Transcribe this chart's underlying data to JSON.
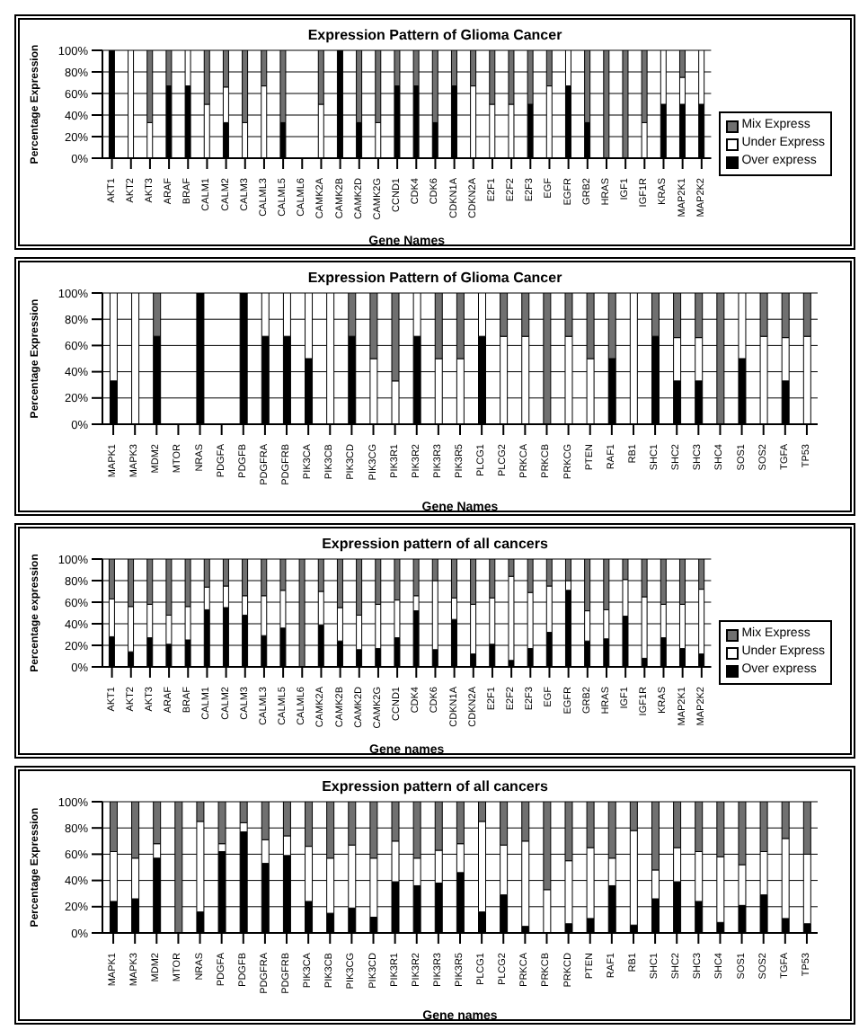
{
  "chart_data": [
    {
      "type": "bar",
      "title": "Expression Pattern of Glioma Cancer",
      "xlabel": "Gene Names",
      "ylabel": "Percentage Expression",
      "stacked": true,
      "grid": "y",
      "legend": "right",
      "ylim": [
        0,
        100
      ],
      "yticks": [
        {
          "value": 0,
          "label": "0%"
        },
        {
          "value": 20,
          "label": "20%"
        },
        {
          "value": 40,
          "label": "40%"
        },
        {
          "value": 60,
          "label": "60%"
        },
        {
          "value": 80,
          "label": "80%"
        },
        {
          "value": 100,
          "label": "100%"
        }
      ],
      "categories": [
        "AKT1",
        "AKT2",
        "AKT3",
        "ARAF",
        "BRAF",
        "CALM1",
        "CALM2",
        "CALM3",
        "CALML3",
        "CALML5",
        "CALML6",
        "CAMK2A",
        "CAMK2B",
        "CAMK2D",
        "CAMK2G",
        "CCND1",
        "CDK4",
        "CDK6",
        "CDKN1A",
        "CDKN2A",
        "E2F1",
        "E2F2",
        "E2F3",
        "EGF",
        "EGFR",
        "GRB2",
        "HRAS",
        "IGF1",
        "IGF1R",
        "KRAS",
        "MAP2K1",
        "MAP2K2"
      ],
      "series": [
        {
          "name": "Over express",
          "color": "#000000",
          "values": [
            100,
            0,
            0,
            67,
            67,
            0,
            33,
            0,
            0,
            33,
            0,
            0,
            100,
            33,
            0,
            67,
            67,
            33,
            67,
            0,
            0,
            0,
            50,
            0,
            67,
            33,
            0,
            0,
            0,
            50,
            50,
            50
          ]
        },
        {
          "name": "Under Express",
          "color": "#ffffff",
          "values": [
            0,
            100,
            33,
            0,
            33,
            50,
            33,
            33,
            67,
            0,
            0,
            50,
            0,
            0,
            33,
            0,
            0,
            0,
            0,
            67,
            50,
            50,
            0,
            67,
            33,
            0,
            0,
            0,
            33,
            50,
            25,
            50
          ]
        },
        {
          "name": "Mix Express",
          "color": "#707070",
          "values": [
            0,
            0,
            67,
            33,
            0,
            50,
            34,
            67,
            33,
            67,
            0,
            50,
            0,
            67,
            67,
            33,
            33,
            67,
            33,
            33,
            50,
            50,
            50,
            33,
            0,
            67,
            100,
            100,
            67,
            0,
            25,
            0
          ]
        }
      ]
    },
    {
      "type": "bar",
      "title": "Expression Pattern of Glioma Cancer",
      "xlabel": "Gene Names",
      "ylabel": "Percentage Expression",
      "stacked": true,
      "grid": "y",
      "ylim": [
        0,
        100
      ],
      "yticks": [
        {
          "value": 0,
          "label": "0%"
        },
        {
          "value": 20,
          "label": "20%"
        },
        {
          "value": 40,
          "label": "40%"
        },
        {
          "value": 60,
          "label": "60%"
        },
        {
          "value": 80,
          "label": "80%"
        },
        {
          "value": 100,
          "label": "100%"
        }
      ],
      "categories": [
        "MAPK1",
        "MAPK3",
        "MDM2",
        "MTOR",
        "NRAS",
        "PDGFA",
        "PDGFB",
        "PDGFRA",
        "PDGFRB",
        "PIK3CA",
        "PIK3CB",
        "PIK3CD",
        "PIK3CG",
        "PIK3R1",
        "PIK3R2",
        "PIK3R3",
        "PIK3R5",
        "PLCG1",
        "PLCG2",
        "PRKCA",
        "PRKCB",
        "PRKCG",
        "PTEN",
        "RAF1",
        "RB1",
        "SHC1",
        "SHC2",
        "SHC3",
        "SHC4",
        "SOS1",
        "SOS2",
        "TGFA",
        "TP53"
      ],
      "series": [
        {
          "color": "#000000",
          "values": [
            33,
            0,
            67,
            0,
            100,
            0,
            100,
            67,
            67,
            50,
            0,
            67,
            0,
            0,
            67,
            0,
            0,
            67,
            0,
            0,
            0,
            0,
            0,
            50,
            0,
            67,
            33,
            33,
            0,
            50,
            0,
            33,
            0
          ]
        },
        {
          "color": "#ffffff",
          "values": [
            67,
            100,
            0,
            0,
            0,
            0,
            0,
            33,
            33,
            50,
            100,
            0,
            50,
            33,
            33,
            50,
            50,
            33,
            67,
            67,
            0,
            67,
            50,
            0,
            100,
            0,
            33,
            33,
            0,
            50,
            67,
            33,
            67
          ]
        },
        {
          "color": "#707070",
          "values": [
            0,
            0,
            33,
            0,
            0,
            0,
            0,
            0,
            0,
            0,
            0,
            33,
            50,
            67,
            0,
            50,
            50,
            0,
            33,
            33,
            100,
            33,
            50,
            50,
            0,
            33,
            34,
            34,
            100,
            0,
            33,
            34,
            33
          ]
        }
      ]
    },
    {
      "type": "bar",
      "title": "Expression pattern of all cancers",
      "xlabel": "Gene names",
      "ylabel": "Percentage expression",
      "stacked": true,
      "grid": "y",
      "legend": "right",
      "ylim": [
        0,
        100
      ],
      "yticks": [
        {
          "value": 0,
          "label": "0%"
        },
        {
          "value": 20,
          "label": "20%"
        },
        {
          "value": 40,
          "label": "40%"
        },
        {
          "value": 60,
          "label": "60%"
        },
        {
          "value": 80,
          "label": "80%"
        },
        {
          "value": 100,
          "label": "100%"
        }
      ],
      "categories": [
        "AKT1",
        "AKT2",
        "AKT3",
        "ARAF",
        "BRAF",
        "CALM1",
        "CALM2",
        "CALM3",
        "CALML3",
        "CALML5",
        "CALML6",
        "CAMK2A",
        "CAMK2B",
        "CAMK2D",
        "CAMK2G",
        "CCND1",
        "CDK4",
        "CDK6",
        "CDKN1A",
        "CDKN2A",
        "E2F1",
        "E2F2",
        "E2F3",
        "EGF",
        "EGFR",
        "GRB2",
        "HRAS",
        "IGF1",
        "IGF1R",
        "KRAS",
        "MAP2K1",
        "MAP2K2"
      ],
      "series": [
        {
          "name": "Over express",
          "color": "#000000",
          "values": [
            28,
            14,
            27,
            21,
            25,
            53,
            55,
            48,
            29,
            36,
            0,
            39,
            24,
            16,
            17,
            27,
            52,
            16,
            44,
            12,
            21,
            6,
            17,
            32,
            71,
            24,
            26,
            47,
            8,
            27,
            17,
            12
          ]
        },
        {
          "name": "Under Express",
          "color": "#ffffff",
          "values": [
            35,
            42,
            31,
            27,
            31,
            21,
            20,
            18,
            37,
            35,
            0,
            31,
            31,
            32,
            41,
            35,
            14,
            64,
            20,
            46,
            43,
            78,
            52,
            43,
            9,
            28,
            27,
            34,
            57,
            31,
            41,
            60
          ]
        },
        {
          "name": "Mix Express",
          "color": "#707070",
          "values": [
            37,
            44,
            42,
            52,
            44,
            26,
            25,
            34,
            34,
            29,
            100,
            30,
            45,
            52,
            42,
            38,
            34,
            20,
            36,
            42,
            36,
            16,
            31,
            25,
            20,
            48,
            47,
            19,
            35,
            42,
            42,
            28
          ]
        }
      ]
    },
    {
      "type": "bar",
      "title": "Expression pattern of all cancers",
      "xlabel": "Gene names",
      "ylabel": "Percentage Expression",
      "stacked": true,
      "grid": "y",
      "ylim": [
        0,
        100
      ],
      "yticks": [
        {
          "value": 0,
          "label": "0%"
        },
        {
          "value": 20,
          "label": "20%"
        },
        {
          "value": 40,
          "label": "40%"
        },
        {
          "value": 60,
          "label": "60%"
        },
        {
          "value": 80,
          "label": "80%"
        },
        {
          "value": 100,
          "label": "100%"
        }
      ],
      "categories": [
        "MAPK1",
        "MAPK3",
        "MDM2",
        "MTOR",
        "NRAS",
        "PDGFA",
        "PDGFB",
        "PDGFRA",
        "PDGFRB",
        "PIK3CA",
        "PIK3CB",
        "PIK3CG",
        "PIK3CD",
        "PIK3R1",
        "PIK3R2",
        "PIK3R3",
        "PIK3R5",
        "PLCG1",
        "PLCG2",
        "PRKCA",
        "PRKCB",
        "PRKCD",
        "PTEN",
        "RAF1",
        "RB1",
        "SHC1",
        "SHC2",
        "SHC3",
        "SHC4",
        "SOS1",
        "SOS2",
        "TGFA",
        "TP53"
      ],
      "series": [
        {
          "color": "#000000",
          "values": [
            24,
            26,
            57,
            0,
            16,
            62,
            77,
            53,
            59,
            24,
            15,
            19,
            12,
            39,
            36,
            38,
            46,
            16,
            29,
            5,
            0,
            7,
            11,
            36,
            6,
            26,
            39,
            24,
            8,
            21,
            29,
            11,
            7
          ]
        },
        {
          "color": "#ffffff",
          "values": [
            38,
            31,
            11,
            0,
            69,
            6,
            7,
            18,
            15,
            42,
            42,
            48,
            45,
            31,
            21,
            25,
            22,
            69,
            38,
            65,
            33,
            48,
            54,
            21,
            72,
            22,
            26,
            38,
            50,
            31,
            33,
            61,
            53
          ]
        },
        {
          "color": "#707070",
          "values": [
            38,
            43,
            32,
            100,
            15,
            32,
            16,
            29,
            26,
            34,
            43,
            33,
            43,
            30,
            43,
            37,
            32,
            15,
            33,
            30,
            67,
            45,
            35,
            43,
            22,
            52,
            35,
            38,
            42,
            48,
            38,
            28,
            40
          ]
        }
      ]
    }
  ]
}
